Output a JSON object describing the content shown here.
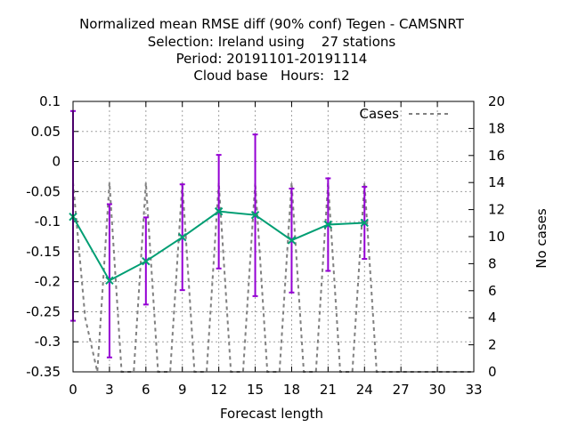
{
  "chart_data": {
    "type": "line",
    "title_lines": [
      "Normalized mean RMSE diff (90% conf) Tegen - CAMSNRT",
      "Selection: Ireland using    27 stations",
      "Period: 20191101-20191114",
      "Cloud base   Hours:  12"
    ],
    "xlabel": "Forecast length",
    "ylabel": "",
    "y2label": "No cases",
    "xlim": [
      0,
      33
    ],
    "ylim": [
      -0.35,
      0.1
    ],
    "y2lim": [
      0,
      20
    ],
    "x_ticks": [
      "0",
      "3",
      "6",
      "9",
      "12",
      "15",
      "18",
      "21",
      "24",
      "27",
      "30",
      "33"
    ],
    "y_ticks": [
      "0.1",
      "0.05",
      "0",
      "-0.05",
      "-0.1",
      "-0.15",
      "-0.2",
      "-0.25",
      "-0.3",
      "-0.35"
    ],
    "y2_ticks": [
      "20",
      "18",
      "16",
      "14",
      "12",
      "10",
      "8",
      "6",
      "4",
      "2",
      "0"
    ],
    "grid": true,
    "legend_position": "top-right",
    "series": [
      {
        "name": "",
        "color": "#009e73",
        "errorbar_color": "#9400d3",
        "x": [
          0,
          3,
          6,
          9,
          12,
          15,
          18,
          21,
          24
        ],
        "y": [
          -0.092,
          -0.198,
          -0.166,
          -0.126,
          -0.083,
          -0.089,
          -0.131,
          -0.105,
          -0.102
        ],
        "err_low": [
          -0.265,
          -0.326,
          -0.238,
          -0.214,
          -0.178,
          -0.224,
          -0.218,
          -0.182,
          -0.162
        ],
        "err_high": [
          0.084,
          -0.071,
          -0.093,
          -0.038,
          0.011,
          0.045,
          -0.045,
          -0.028,
          -0.042
        ]
      },
      {
        "name": "Cases",
        "color": "#808080",
        "axis": "y2",
        "x": [
          0,
          1,
          2,
          3,
          4,
          5,
          6,
          7,
          8,
          9,
          10,
          11,
          12,
          13,
          14,
          15,
          16,
          17,
          18,
          19,
          20,
          21,
          22,
          23,
          24,
          25,
          33
        ],
        "y": [
          14,
          4,
          0,
          14,
          0,
          0,
          14,
          0,
          0,
          14,
          0,
          0,
          14,
          0,
          0,
          14,
          0,
          0,
          14,
          0,
          0,
          14,
          0,
          0,
          14,
          0,
          0
        ]
      }
    ]
  }
}
